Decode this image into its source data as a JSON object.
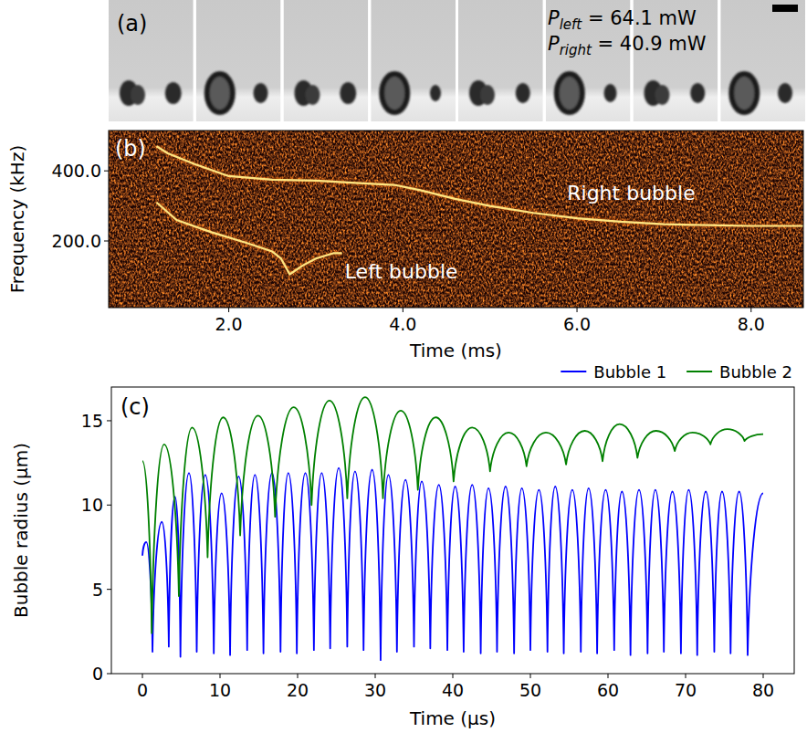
{
  "chart_data": [
    {
      "type": "image_strip",
      "title": "(a)",
      "annotations": [
        {
          "symbol": "P",
          "subscript": "left",
          "text": " = 64.1 mW"
        },
        {
          "symbol": "P",
          "subscript": "right",
          "text": " = 40.9 mW"
        }
      ]
    },
    {
      "type": "spectrogram",
      "title": "(b)",
      "x_label": "Time (ms)",
      "y_label": "Frequency (kHz)",
      "xlim": [
        0.62,
        8.6
      ],
      "xticks": [
        {
          "value": 2,
          "label": "2.0"
        },
        {
          "value": 4,
          "label": "4.0"
        },
        {
          "value": 6,
          "label": "6.0"
        },
        {
          "value": 8,
          "label": "8.0"
        }
      ],
      "ylim": [
        10,
        515
      ],
      "yticks": [
        {
          "value": 200,
          "label": "200.0"
        },
        {
          "value": 400,
          "label": "400.0"
        }
      ],
      "series": [
        {
          "name": "Right bubble",
          "color": "#ffe680",
          "x": [
            1.17,
            1.3,
            1.6,
            2.0,
            2.5,
            3.0,
            3.5,
            3.9,
            4.2,
            4.6,
            5.0,
            5.5,
            6.0,
            6.5,
            7.0,
            7.5,
            8.0,
            8.6
          ],
          "values": [
            470,
            450,
            420,
            385,
            375,
            372,
            365,
            360,
            345,
            320,
            300,
            280,
            265,
            255,
            248,
            245,
            243,
            243
          ]
        },
        {
          "name": "Left bubble",
          "color": "#ffe680",
          "x": [
            1.17,
            1.4,
            1.8,
            2.2,
            2.5,
            2.6,
            2.7,
            2.85,
            3.0,
            3.2,
            3.3
          ],
          "values": [
            310,
            260,
            225,
            195,
            170,
            150,
            105,
            130,
            150,
            165,
            165
          ]
        }
      ]
    },
    {
      "type": "line",
      "title": "(c)",
      "x_label": "Time (μs)",
      "y_label": "Bubble radius (μm)",
      "xlim": [
        -4,
        84
      ],
      "xticks": [
        0,
        10,
        20,
        30,
        40,
        50,
        60,
        70,
        80
      ],
      "ylim": [
        0,
        17
      ],
      "yticks": [
        0,
        5,
        10,
        15
      ],
      "legend": "top",
      "series": [
        {
          "name": "Bubble 1",
          "color": "#0000ff",
          "x": [
            0,
            0.5,
            1.3,
            2.5,
            3.4,
            4.2,
            4.9,
            6.0,
            7.0,
            8.1,
            9.2,
            10.2,
            11.3,
            12.4,
            13.5,
            14.5,
            15.6,
            16.7,
            17.8,
            18.8,
            19.9,
            21.0,
            22.1,
            23.1,
            24.2,
            25.3,
            26.4,
            27.4,
            28.5,
            29.6,
            30.7,
            31.7,
            32.8,
            33.9,
            35.0,
            36.0,
            37.1,
            38.2,
            39.3,
            40.3,
            41.4,
            42.5,
            43.6,
            44.6,
            45.7,
            46.8,
            47.9,
            48.9,
            50.0,
            51.1,
            52.2,
            53.2,
            54.3,
            55.4,
            56.5,
            57.5,
            58.6,
            59.7,
            60.8,
            61.8,
            62.9,
            64.0,
            65.1,
            66.1,
            67.2,
            68.3,
            69.4,
            70.4,
            71.5,
            72.6,
            73.7,
            74.7,
            75.8,
            76.9,
            78.0,
            80.0
          ],
          "values": [
            7.0,
            7.8,
            1.3,
            9.0,
            1.6,
            10.5,
            1.0,
            11.9,
            1.3,
            11.8,
            1.2,
            10.7,
            1.1,
            11.7,
            1.4,
            11.8,
            1.2,
            11.9,
            1.3,
            11.9,
            1.2,
            11.9,
            1.4,
            11.9,
            1.5,
            12.2,
            1.6,
            12.0,
            1.4,
            12.1,
            0.8,
            11.8,
            1.3,
            11.5,
            1.6,
            11.4,
            1.5,
            11.2,
            1.4,
            11.1,
            1.3,
            11.2,
            1.2,
            11.0,
            1.3,
            11.1,
            1.2,
            11.0,
            1.4,
            10.9,
            1.3,
            11.1,
            1.2,
            10.9,
            1.3,
            11.0,
            1.2,
            10.9,
            1.4,
            10.8,
            1.1,
            10.9,
            1.2,
            10.9,
            1.3,
            10.8,
            1.2,
            10.9,
            1.1,
            10.8,
            1.3,
            10.8,
            1.2,
            10.8,
            1.1,
            10.7
          ]
        },
        {
          "name": "Bubble 2",
          "color": "#008000",
          "x": [
            0,
            1.2,
            2.8,
            4.7,
            6.4,
            8.4,
            10.4,
            12.6,
            14.9,
            17.1,
            19.5,
            21.8,
            24.1,
            26.4,
            28.7,
            31.0,
            33.3,
            35.5,
            37.8,
            40.1,
            42.5,
            44.8,
            47.2,
            49.5,
            52.0,
            54.6,
            57.0,
            59.3,
            61.5,
            63.8,
            66.2,
            68.6,
            70.9,
            73.2,
            75.4,
            77.6,
            80.0
          ],
          "values": [
            12.6,
            2.4,
            13.6,
            4.6,
            14.6,
            6.9,
            15.2,
            8.2,
            15.3,
            9.3,
            15.8,
            10.0,
            16.2,
            10.4,
            16.4,
            10.4,
            15.6,
            10.9,
            15.2,
            11.4,
            14.6,
            12.0,
            14.3,
            12.3,
            14.3,
            12.4,
            14.4,
            12.6,
            14.8,
            12.8,
            14.4,
            13.2,
            14.3,
            13.6,
            14.5,
            13.8,
            14.2
          ]
        }
      ]
    }
  ]
}
